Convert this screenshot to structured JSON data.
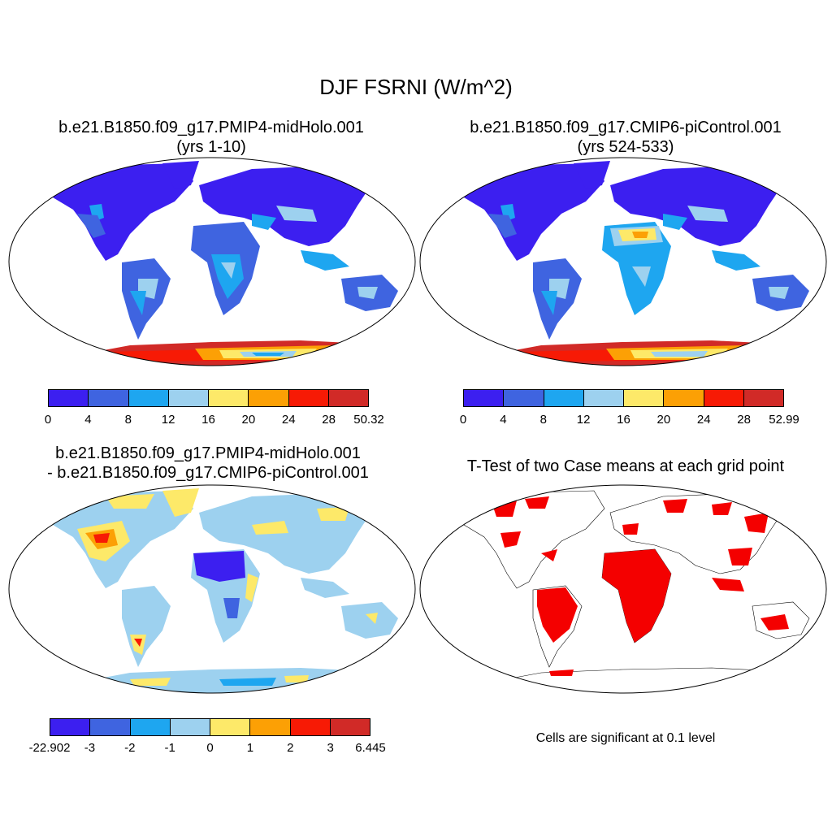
{
  "title": "DJF FSRNI (W/m^2)",
  "panels": {
    "p1": {
      "title": "b.e21.B1850.f09_g17.PMIP4-midHolo.001",
      "subtitle": "(yrs 1-10)"
    },
    "p2": {
      "title": "b.e21.B1850.f09_g17.CMIP6-piControl.001",
      "subtitle": "(yrs 524-533)"
    },
    "p3": {
      "title": "b.e21.B1850.f09_g17.PMIP4-midHolo.001",
      "subtitle": "- b.e21.B1850.f09_g17.CMIP6-piControl.001"
    },
    "p4": {
      "title": "T-Test of two Case means at each grid point",
      "note": "Cells are significant at 0.1 level"
    }
  },
  "colorbars": {
    "cb1": {
      "colors": [
        "#3c1ff0",
        "#3f64e0",
        "#1ea6f0",
        "#9dd1ef",
        "#fde969",
        "#fca005",
        "#f71a05",
        "#d12a27"
      ],
      "labels": [
        "0",
        "4",
        "8",
        "12",
        "16",
        "20",
        "24",
        "28",
        "50.32"
      ]
    },
    "cb2": {
      "colors": [
        "#3c1ff0",
        "#3f64e0",
        "#1ea6f0",
        "#9dd1ef",
        "#fde969",
        "#fca005",
        "#f71a05",
        "#d12a27"
      ],
      "labels": [
        "0",
        "4",
        "8",
        "12",
        "16",
        "20",
        "24",
        "28",
        "52.99"
      ]
    },
    "cb3": {
      "colors": [
        "#3c1ff0",
        "#3f64e0",
        "#1ea6f0",
        "#9dd1ef",
        "#fde969",
        "#fca005",
        "#f71a05",
        "#d12a27"
      ],
      "labels": [
        "-22.902",
        "-3",
        "-2",
        "-1",
        "0",
        "1",
        "2",
        "3",
        "6.445"
      ]
    }
  },
  "map_colors": {
    "land_low": "#3c1ff0",
    "land_mid": "#3f64e0",
    "land_light": "#1ea6f0",
    "land_pale": "#9dd1ef",
    "yellow": "#fde969",
    "orange": "#fca005",
    "red": "#f71a05",
    "darkred": "#d12a27",
    "significant": "#f40000"
  }
}
